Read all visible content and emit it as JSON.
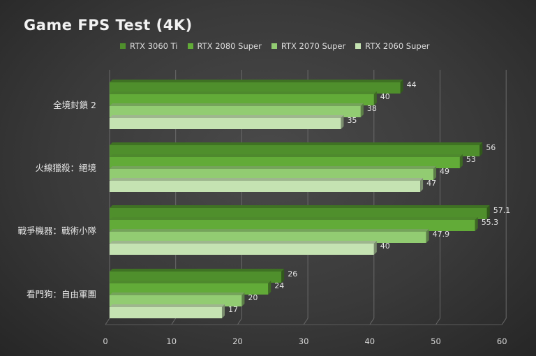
{
  "chart_data": {
    "type": "bar",
    "orientation": "horizontal",
    "title": "Game FPS Test (4K)",
    "categories": [
      "全境封鎖 2",
      "火線獵殺：絕境",
      "戰爭機器：戰術小隊",
      "看門狗：自由軍團"
    ],
    "series": [
      {
        "name": "RTX 3060 Ti",
        "values": [
          44,
          56,
          57.1,
          26
        ],
        "color": "#4f8f2c"
      },
      {
        "name": "RTX 2080 Super",
        "values": [
          40,
          53,
          55.3,
          24
        ],
        "color": "#62ab38"
      },
      {
        "name": "RTX 2070 Super",
        "values": [
          38,
          49,
          47.9,
          20
        ],
        "color": "#92cc72"
      },
      {
        "name": "RTX 2060 Super",
        "values": [
          35,
          47,
          40,
          17
        ],
        "color": "#c5e3b2"
      }
    ],
    "data_labels": [
      [
        "44",
        "40",
        "38",
        "35"
      ],
      [
        "56",
        "53",
        "49",
        "47"
      ],
      [
        "57.1",
        "55.3",
        "47.9",
        "40"
      ],
      [
        "26",
        "24",
        "20",
        "17"
      ]
    ],
    "x_ticks": [
      "0",
      "10",
      "20",
      "30",
      "40",
      "50",
      "60"
    ],
    "xlim": [
      0,
      60
    ],
    "grid": true,
    "legend_position": "top"
  }
}
